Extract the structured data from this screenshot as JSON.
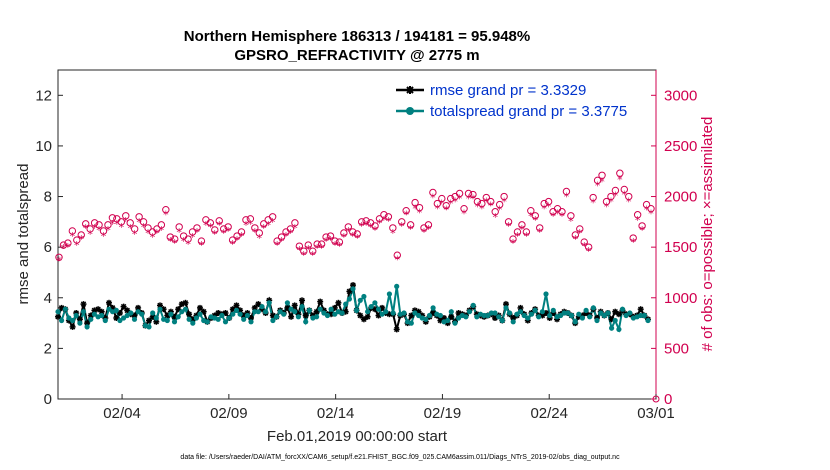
{
  "chart_data": {
    "type": "line",
    "title": "Northern Hemisphere 186313 / 194181 = 95.948%",
    "subtitle": "GPSRO_REFRACTIVITY @ 2775 m",
    "xlabel": "Feb.01,2019 00:00:00 start",
    "ylabel": "rmse and totalspread",
    "ylabel_right": "# of obs: o=possible; ×=assimilated",
    "footnote": "data file: /Users/raeder/DAI/ATM_forcXX/CAM6_setup/f.e21.FHIST_BGC.f09_025.CAM6assim.011/Diags_NTrS_2019-02/obs_diag_output.nc",
    "x_range_days": [
      0,
      28
    ],
    "x_ticks": [
      {
        "day": 3,
        "label": "02/04"
      },
      {
        "day": 8,
        "label": "02/09"
      },
      {
        "day": 13,
        "label": "02/14"
      },
      {
        "day": 18,
        "label": "02/19"
      },
      {
        "day": 23,
        "label": "02/24"
      },
      {
        "day": 28,
        "label": "03/01"
      }
    ],
    "ylim": [
      0,
      13
    ],
    "y_ticks": [
      "0",
      "2",
      "4",
      "6",
      "8",
      "10",
      "12"
    ],
    "ylim_right": [
      0,
      3250
    ],
    "y_ticks_right": [
      "0",
      "500",
      "1000",
      "1500",
      "2000",
      "2500",
      "3000"
    ],
    "legend_position": "top-right",
    "grid": false,
    "colors": {
      "rmse": "#000000",
      "totalspread": "#008080",
      "obs": "#d1004f"
    },
    "series": [
      {
        "name": "rmse grand pr = 3.3329",
        "axis": "left",
        "values": [
          3.25,
          3.6,
          3.55,
          3.1,
          2.85,
          3.4,
          3.15,
          3.75,
          3.0,
          3.3,
          3.5,
          3.55,
          3.45,
          3.2,
          3.8,
          3.6,
          3.2,
          3.4,
          3.65,
          3.5,
          3.35,
          3.3,
          3.6,
          3.4,
          2.9,
          3.1,
          3.25,
          3.05,
          3.7,
          3.55,
          3.3,
          3.45,
          3.25,
          3.55,
          3.75,
          3.8,
          3.35,
          3.15,
          3.3,
          3.6,
          3.45,
          3.05,
          3.2,
          3.3,
          3.4,
          3.35,
          3.4,
          3.2,
          3.55,
          3.7,
          3.5,
          3.3,
          3.4,
          3.2,
          3.6,
          3.75,
          3.55,
          3.4,
          3.9,
          3.3,
          3.25,
          3.5,
          3.4,
          3.6,
          3.25,
          3.7,
          3.35,
          3.9,
          3.3,
          3.5,
          3.3,
          3.45,
          3.85,
          3.5,
          3.35,
          3.35,
          3.6,
          3.8,
          3.4,
          3.45,
          4.25,
          4.5,
          3.5,
          3.3,
          3.15,
          3.25,
          3.6,
          3.55,
          3.3,
          3.6,
          3.4,
          3.35,
          3.35,
          2.75,
          3.3,
          3.35,
          3.0,
          3.3,
          3.5,
          3.45,
          3.3,
          3.05,
          3.25,
          3.4,
          3.3,
          3.1,
          3.2,
          3.0,
          3.25,
          3.05,
          3.4,
          3.35,
          3.3,
          3.5,
          3.65,
          3.35,
          3.3,
          3.25,
          3.3,
          3.35,
          3.2,
          3.3,
          3.1,
          3.75,
          3.35,
          3.2,
          3.3,
          3.6,
          3.35,
          3.1,
          3.4,
          3.55,
          3.3,
          3.3,
          3.4,
          3.2,
          3.4,
          3.15,
          3.35,
          3.45,
          3.4,
          3.3,
          3.0,
          3.25,
          3.3,
          3.4,
          3.3,
          3.55,
          3.2,
          3.45,
          3.3,
          3.4,
          3.15,
          3.45,
          3.35,
          3.5,
          3.35,
          3.35,
          3.25,
          3.3,
          3.55,
          3.3,
          3.15
        ]
      },
      {
        "name": "totalspread grand pr = 3.3775",
        "axis": "left",
        "values": [
          3.45,
          3.1,
          3.55,
          3.2,
          3.1,
          3.3,
          3.0,
          3.45,
          2.85,
          3.15,
          3.35,
          3.25,
          3.3,
          3.1,
          3.55,
          3.45,
          3.5,
          3.1,
          3.2,
          3.3,
          3.4,
          3.15,
          3.45,
          3.35,
          2.9,
          2.85,
          3.4,
          3.2,
          3.55,
          3.15,
          3.1,
          3.35,
          3.05,
          3.25,
          3.45,
          3.55,
          3.15,
          3.0,
          3.2,
          3.35,
          3.1,
          3.05,
          3.25,
          3.2,
          3.15,
          3.3,
          3.05,
          3.2,
          3.35,
          3.5,
          3.35,
          3.15,
          3.3,
          3.05,
          3.45,
          3.45,
          3.65,
          3.45,
          3.8,
          3.1,
          3.25,
          3.45,
          3.35,
          3.8,
          3.55,
          3.45,
          3.25,
          3.65,
          3.05,
          3.5,
          3.2,
          3.25,
          3.55,
          3.4,
          3.3,
          3.55,
          3.35,
          3.45,
          3.4,
          3.75,
          3.95,
          4.35,
          3.5,
          3.9,
          4.05,
          3.45,
          3.65,
          3.8,
          3.55,
          3.35,
          3.45,
          4.15,
          3.4,
          4.45,
          3.35,
          3.4,
          3.05,
          3.0,
          3.4,
          3.3,
          3.2,
          3.15,
          3.3,
          3.6,
          3.35,
          3.3,
          3.05,
          3.1,
          3.45,
          3.0,
          3.2,
          3.3,
          3.25,
          3.45,
          3.7,
          3.25,
          3.35,
          3.3,
          3.3,
          3.4,
          3.4,
          3.25,
          3.1,
          3.6,
          3.4,
          3.05,
          3.35,
          3.45,
          3.3,
          3.2,
          3.35,
          3.5,
          3.25,
          3.45,
          4.15,
          3.3,
          3.5,
          3.25,
          3.3,
          3.4,
          3.4,
          3.3,
          3.05,
          3.35,
          3.2,
          3.5,
          3.25,
          3.6,
          3.1,
          3.4,
          3.3,
          3.4,
          2.8,
          3.1,
          2.75,
          3.55,
          3.3,
          3.4,
          3.2,
          3.25,
          3.3,
          3.3,
          3.1
        ]
      },
      {
        "name": "possible",
        "axis": "right",
        "values": [
          1400,
          1520,
          1540,
          1660,
          1570,
          1620,
          1730,
          1680,
          1740,
          1720,
          1660,
          1720,
          1790,
          1780,
          1750,
          1810,
          1740,
          1680,
          1800,
          1750,
          1690,
          1650,
          1680,
          1720,
          1870,
          1600,
          1580,
          1700,
          1610,
          1580,
          1650,
          1690,
          1560,
          1770,
          1740,
          1670,
          1760,
          1680,
          1700,
          1570,
          1610,
          1650,
          1770,
          1780,
          1690,
          1640,
          1730,
          1770,
          1800,
          1560,
          1600,
          1650,
          1680,
          1740,
          1510,
          1460,
          1520,
          1460,
          1530,
          1530,
          1600,
          1610,
          1560,
          1550,
          1640,
          1700,
          1650,
          1630,
          1750,
          1760,
          1740,
          1710,
          1780,
          1820,
          1800,
          1690,
          1420,
          1750,
          1860,
          1720,
          1940,
          1890,
          1690,
          1720,
          2040,
          1930,
          1980,
          1910,
          1980,
          2000,
          2030,
          1880,
          2030,
          2020,
          1950,
          1930,
          1990,
          1950,
          1850,
          1920,
          2000,
          1750,
          1580,
          1650,
          1720,
          1650,
          1860,
          1810,
          1690,
          1930,
          1950,
          1850,
          1880,
          1850,
          2050,
          1810,
          1620,
          1680,
          1550,
          1500,
          1990,
          2160,
          2210,
          1950,
          2000,
          2060,
          2230,
          2070,
          2000,
          1590,
          1820,
          1710,
          1920,
          1880
        ]
      },
      {
        "name": "assimilated",
        "axis": "right",
        "values": [
          1380,
          1500,
          1510,
          1620,
          1530,
          1590,
          1700,
          1640,
          1700,
          1680,
          1620,
          1680,
          1740,
          1740,
          1710,
          1770,
          1700,
          1640,
          1760,
          1710,
          1650,
          1610,
          1650,
          1680,
          1830,
          1570,
          1550,
          1660,
          1570,
          1540,
          1610,
          1660,
          1530,
          1730,
          1710,
          1640,
          1730,
          1650,
          1670,
          1540,
          1580,
          1620,
          1730,
          1740,
          1660,
          1600,
          1700,
          1730,
          1760,
          1530,
          1570,
          1620,
          1650,
          1700,
          1480,
          1430,
          1490,
          1430,
          1500,
          1500,
          1570,
          1580,
          1530,
          1520,
          1610,
          1670,
          1620,
          1600,
          1720,
          1730,
          1710,
          1680,
          1750,
          1780,
          1770,
          1650,
          1390,
          1720,
          1830,
          1690,
          1890,
          1850,
          1660,
          1690,
          2000,
          1890,
          1940,
          1880,
          1940,
          1960,
          1990,
          1840,
          1990,
          1990,
          1910,
          1890,
          1960,
          1920,
          1810,
          1880,
          1960,
          1720,
          1550,
          1620,
          1690,
          1620,
          1820,
          1780,
          1660,
          1890,
          1910,
          1820,
          1840,
          1820,
          2010,
          1770,
          1590,
          1650,
          1520,
          1470,
          1950,
          2120,
          2160,
          1910,
          1960,
          2020,
          2180,
          2030,
          1960,
          1560,
          1780,
          1680,
          1880,
          1840
        ]
      }
    ]
  }
}
